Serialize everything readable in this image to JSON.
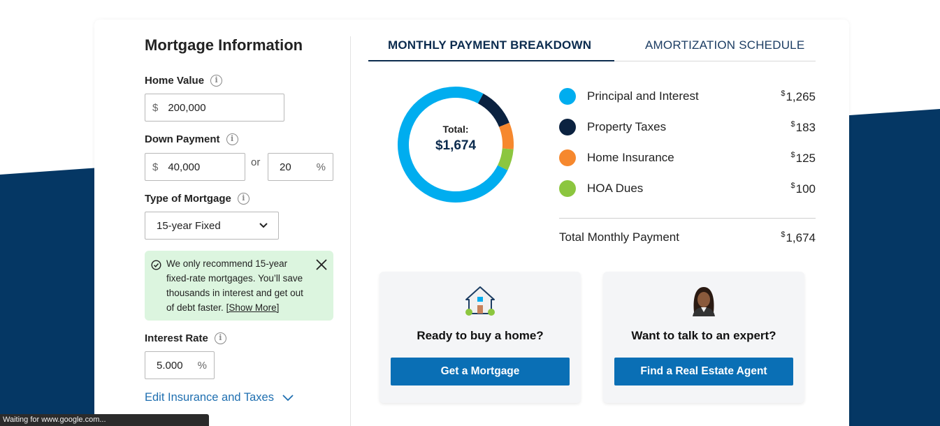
{
  "colors": {
    "navy_band": "#053764",
    "principal": "#00adef",
    "taxes": "#0b2240",
    "insurance": "#f6882e",
    "hoa": "#8cc63f",
    "primary_button": "#0a6fb5",
    "alert_bg": "#dcf5df"
  },
  "mortgage_form": {
    "title": "Mortgage Information",
    "home_value": {
      "label": "Home Value",
      "prefix": "$",
      "value": "200,000"
    },
    "down_payment": {
      "label": "Down Payment",
      "prefix": "$",
      "value": "40,000",
      "or_text": "or",
      "percent_value": "20",
      "percent_suffix": "%"
    },
    "mortgage_type": {
      "label": "Type of Mortgage",
      "selected": "15-year Fixed"
    },
    "alert": {
      "text": "We only recommend 15-year fixed-rate mortgages. You’ll save thousands in interest and get out of debt faster.",
      "link": "[Show More]"
    },
    "interest_rate": {
      "label": "Interest Rate",
      "value": "5.000",
      "suffix": "%"
    },
    "edit_link": "Edit Insurance and Taxes"
  },
  "tabs": [
    {
      "label": "MONTHLY PAYMENT BREAKDOWN",
      "active": true
    },
    {
      "label": "AMORTIZATION SCHEDULE",
      "active": false
    }
  ],
  "donut": {
    "total_label": "Total:",
    "total_value": "$1,674"
  },
  "breakdown": [
    {
      "label": "Principal and Interest",
      "currency": "$",
      "amount": "1,265",
      "value": 1265,
      "color": "#00adef"
    },
    {
      "label": "Property Taxes",
      "currency": "$",
      "amount": "183",
      "value": 183,
      "color": "#0b2240"
    },
    {
      "label": "Home Insurance",
      "currency": "$",
      "amount": "125",
      "value": 125,
      "color": "#f6882e"
    },
    {
      "label": "HOA Dues",
      "currency": "$",
      "amount": "100",
      "value": 100,
      "color": "#8cc63f"
    }
  ],
  "total_row": {
    "label": "Total Monthly Payment",
    "currency": "$",
    "amount": "1,674"
  },
  "cta": {
    "buy": {
      "heading": "Ready to buy a home?",
      "button": "Get a Mortgage",
      "icon": "house-icon"
    },
    "expert": {
      "heading": "Want to talk to an expert?",
      "button": "Find a Real Estate Agent",
      "icon": "agent-avatar-icon"
    }
  },
  "status_bar": "Waiting for www.google.com..."
}
